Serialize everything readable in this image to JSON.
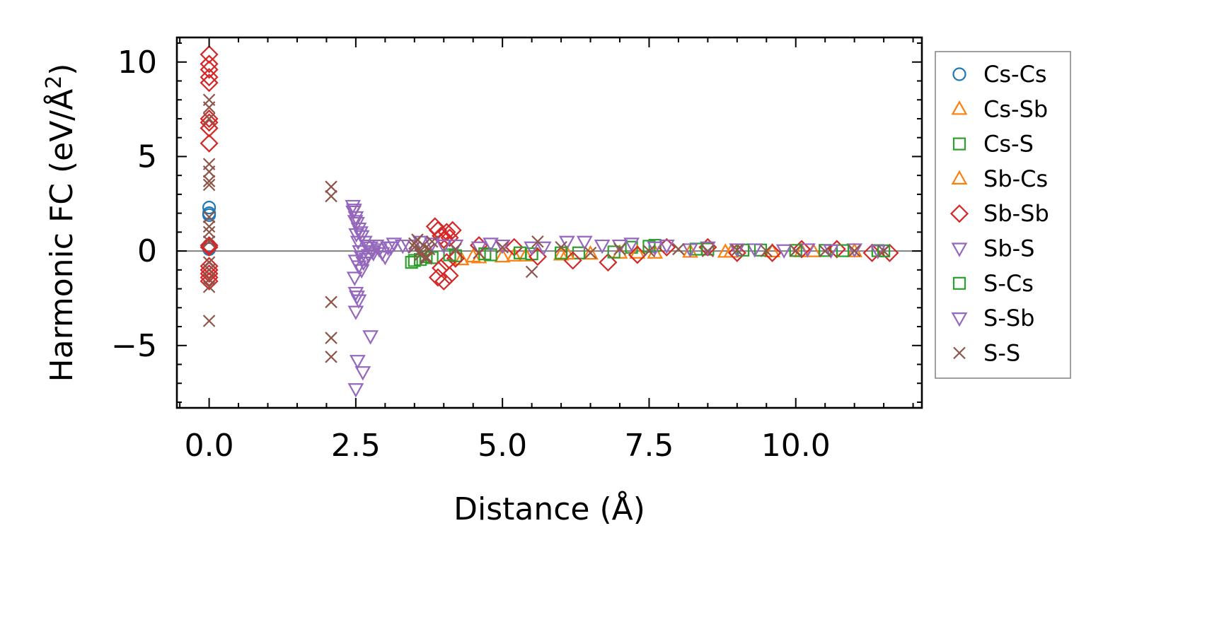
{
  "chart_data": {
    "type": "scatter",
    "title": "",
    "xlabel": "Distance (Å)",
    "ylabel_main": "Harmonic FC (eV/Å",
    "ylabel_sup": "2",
    "ylabel_close": ")",
    "xlim": [
      -0.55,
      12.15
    ],
    "ylim": [
      -8.3,
      11.3
    ],
    "xticks": [
      0.0,
      2.5,
      5.0,
      7.5,
      10.0
    ],
    "xtick_labels": [
      "0.0",
      "2.5",
      "5.0",
      "7.5",
      "10.0"
    ],
    "yticks": [
      -5,
      0,
      5,
      10
    ],
    "ytick_labels": [
      "−5",
      "0",
      "5",
      "10"
    ],
    "zero_line": 0,
    "legend_position": "right outside",
    "series": [
      {
        "name": "Cs-Cs",
        "marker": "circle",
        "color": "#1f77b4",
        "x": [
          0,
          0,
          0,
          0,
          0
        ],
        "y": [
          2.3,
          2.0,
          1.9,
          0.3,
          0.1
        ]
      },
      {
        "name": "Cs-Sb",
        "marker": "triangle-up",
        "color": "#ff7f0e",
        "x": [
          4.3,
          4.6,
          5.0,
          5.4,
          6.0,
          6.5,
          7.0,
          7.6,
          8.2,
          8.9,
          9.6,
          10.3,
          11.0
        ],
        "y": [
          -0.45,
          -0.35,
          -0.3,
          -0.25,
          -0.2,
          -0.15,
          -0.1,
          -0.1,
          -0.05,
          -0.05,
          -0.03,
          -0.02,
          -0.02
        ]
      },
      {
        "name": "Cs-S",
        "marker": "square",
        "color": "#2ca02c",
        "x": [
          3.45,
          3.6,
          3.8,
          4.2,
          4.8,
          5.5,
          6.3,
          7.2,
          7.6,
          8.5,
          9.4,
          10.5,
          11.4
        ],
        "y": [
          -0.6,
          -0.45,
          -0.35,
          -0.25,
          -0.2,
          -0.15,
          -0.1,
          0.2,
          0.3,
          0.1,
          0.05,
          0.03,
          0.02
        ]
      },
      {
        "name": "Sb-Cs",
        "marker": "triangle-up",
        "color": "#ff7f0e",
        "x": [
          4.5,
          5.2,
          6.1,
          7.3,
          8.8,
          10.1
        ],
        "y": [
          -0.3,
          -0.25,
          -0.15,
          -0.1,
          -0.05,
          -0.02
        ]
      },
      {
        "name": "Sb-Sb",
        "marker": "diamond",
        "color": "#d62728",
        "x": [
          0,
          0,
          0,
          0,
          0,
          0,
          0,
          0,
          0,
          0,
          0,
          0,
          0,
          0,
          0,
          0,
          3.85,
          3.9,
          3.95,
          4.0,
          4.05,
          4.1,
          4.15,
          3.9,
          4.0,
          4.1,
          3.95,
          4.05,
          4.2,
          4.6,
          5.2,
          5.6,
          6.2,
          6.8,
          7.3,
          7.8,
          8.5,
          9.0,
          9.6,
          10.1,
          10.7,
          11.3,
          11.6
        ],
        "y": [
          10.4,
          9.9,
          9.6,
          9.2,
          8.9,
          7.0,
          6.8,
          6.5,
          5.7,
          0.3,
          0.2,
          -0.8,
          -1.0,
          -1.2,
          -1.4,
          -1.6,
          1.3,
          1.1,
          0.8,
          0.6,
          1.0,
          0.7,
          1.1,
          -1.4,
          -1.6,
          -1.3,
          -0.9,
          -0.6,
          -0.4,
          0.3,
          0.2,
          -0.3,
          -0.5,
          -0.6,
          -0.2,
          0.2,
          0.2,
          -0.1,
          -0.1,
          0.1,
          0.1,
          -0.1,
          -0.1
        ]
      },
      {
        "name": "Sb-S",
        "marker": "triangle-down",
        "color": "#9467bd",
        "x": [
          2.45,
          2.47,
          2.5,
          2.52,
          2.55,
          2.58,
          2.6,
          2.65,
          2.7,
          2.75,
          2.8,
          2.9,
          3.0,
          3.1,
          2.5,
          2.55,
          2.6,
          2.48,
          2.5,
          2.52,
          2.55,
          2.5,
          2.53,
          2.62,
          2.75,
          3.4,
          3.6,
          3.8,
          4.2,
          4.6,
          5.0,
          5.5,
          6.1,
          6.7,
          7.2,
          7.8,
          8.5,
          9.3,
          10.2,
          11.0
        ],
        "y": [
          2.4,
          2.2,
          1.8,
          1.5,
          1.2,
          1.0,
          0.8,
          0.5,
          0.3,
          0.2,
          -0.1,
          0.1,
          -0.3,
          0.2,
          -0.5,
          -0.8,
          -1.0,
          -1.4,
          -2.2,
          -2.4,
          -2.6,
          -3.2,
          -5.8,
          -6.4,
          -4.5,
          0.3,
          0.5,
          0.4,
          0.3,
          0.2,
          0.3,
          0.2,
          0.5,
          0.3,
          0.4,
          0.3,
          0.2,
          0.1,
          0.1,
          0.1
        ]
      },
      {
        "name": "S-Cs",
        "marker": "square",
        "color": "#2ca02c",
        "x": [
          3.5,
          3.7,
          4.1,
          4.7,
          5.3,
          6.0,
          6.9,
          7.5,
          8.3,
          9.1,
          10.0,
          10.8,
          11.5
        ],
        "y": [
          -0.5,
          -0.3,
          -0.2,
          -0.15,
          -0.1,
          -0.1,
          -0.05,
          0.25,
          0.1,
          0.05,
          0.03,
          0.02,
          0.01
        ]
      },
      {
        "name": "S-Sb",
        "marker": "triangle-down",
        "color": "#9467bd",
        "x": [
          2.46,
          2.49,
          2.51,
          2.54,
          2.57,
          2.6,
          2.63,
          2.68,
          2.72,
          2.78,
          2.85,
          2.95,
          3.05,
          3.15,
          3.3,
          2.5,
          4.0,
          4.8,
          5.7,
          6.4,
          7.0,
          7.6,
          8.2,
          9.0,
          9.8,
          10.6,
          11.4
        ],
        "y": [
          2.1,
          1.6,
          0.9,
          0.5,
          0.0,
          -0.3,
          -0.6,
          -0.4,
          -0.2,
          0.0,
          0.3,
          -0.1,
          0.2,
          0.4,
          0.3,
          -7.3,
          0.3,
          0.4,
          0.2,
          0.5,
          0.3,
          0.2,
          0.1,
          0.1,
          0.05,
          0.05,
          0.02
        ]
      },
      {
        "name": "S-S",
        "marker": "x",
        "color": "#8c564b",
        "x": [
          0,
          0,
          0,
          0,
          0,
          0,
          0,
          0,
          0,
          0,
          0,
          0,
          0,
          0,
          0,
          0,
          2.08,
          2.08,
          2.08,
          2.08,
          2.08,
          3.5,
          3.55,
          3.6,
          3.65,
          3.7,
          3.75,
          3.8,
          3.6,
          3.7,
          3.5,
          4.2,
          4.6,
          5.0,
          5.5,
          5.6,
          6.0,
          6.5,
          7.0,
          7.5,
          8.0,
          8.5,
          9.0,
          9.5,
          10.0,
          10.5,
          11.0,
          11.5
        ],
        "y": [
          8.0,
          7.6,
          7.0,
          4.6,
          4.2,
          3.7,
          3.5,
          1.8,
          1.3,
          1.0,
          0.5,
          -0.6,
          -1.0,
          -1.5,
          -1.9,
          -3.7,
          3.4,
          2.9,
          -2.7,
          -4.6,
          -5.6,
          0.4,
          0.6,
          -0.2,
          0.3,
          -0.4,
          0.1,
          0.5,
          0.0,
          -0.3,
          0.2,
          0.1,
          -0.1,
          0.2,
          -1.1,
          0.5,
          0.2,
          -0.1,
          0.1,
          0.0,
          0.1,
          0.0,
          0.05,
          0.0,
          0.02,
          0.0,
          0.01,
          0.0
        ]
      }
    ]
  }
}
